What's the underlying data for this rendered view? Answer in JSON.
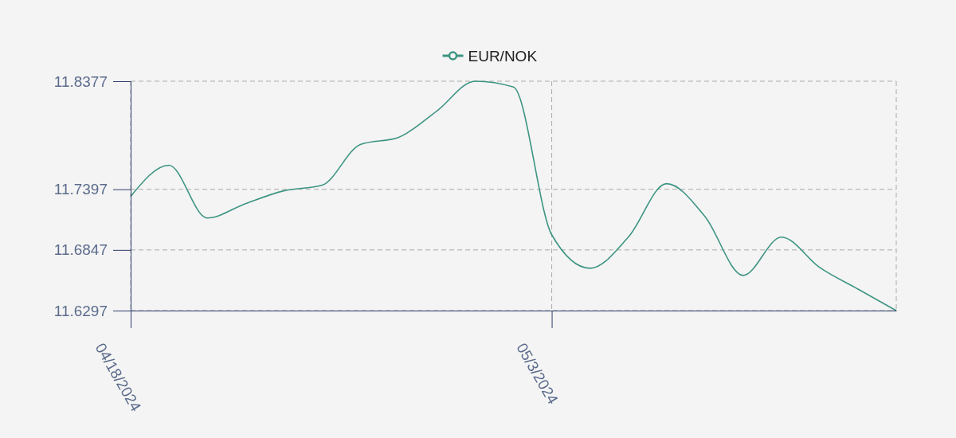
{
  "chart_data": {
    "type": "line",
    "categories": [
      "04/18/2024",
      null,
      null,
      null,
      null,
      null,
      null,
      null,
      null,
      null,
      null,
      "05/3/2024",
      null,
      null,
      null,
      null,
      null,
      null,
      null,
      null,
      null
    ],
    "series": [
      {
        "name": "EUR/NOK",
        "color": "#3d9482",
        "values": [
          11.7332,
          11.7615,
          11.7137,
          11.7267,
          11.7383,
          11.7434,
          11.7803,
          11.7868,
          11.8107,
          11.8377,
          11.8324,
          11.6985,
          11.6681,
          11.6963,
          11.7448,
          11.7151,
          11.6616,
          11.6963,
          11.6688,
          11.6492,
          11.6297
        ]
      }
    ],
    "ylim": [
      11.6297,
      11.8377
    ],
    "yticks": [
      11.6297,
      11.6847,
      11.7397,
      11.8377
    ],
    "grid": true,
    "legend": "top"
  }
}
